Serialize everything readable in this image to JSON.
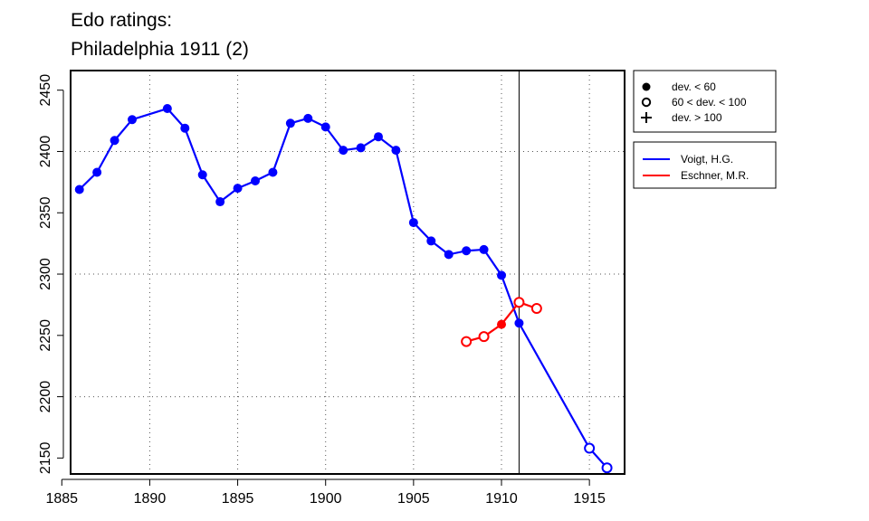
{
  "chart_data": {
    "type": "line",
    "title_lines": [
      "Edo ratings:",
      "Philadelphia 1911 (2)"
    ],
    "xlabel": "",
    "ylabel": "",
    "xlim": [
      1885.5,
      1917.0
    ],
    "ylim": [
      2137,
      2466
    ],
    "x_ticks": [
      1885,
      1890,
      1895,
      1900,
      1905,
      1910,
      1915
    ],
    "y_ticks": [
      2150,
      2200,
      2250,
      2300,
      2350,
      2400,
      2450
    ],
    "x_grid": [
      1890,
      1895,
      1900,
      1905,
      1910,
      1915
    ],
    "y_grid": [
      2200,
      2300,
      2400
    ],
    "grid": "dotted",
    "reference_line_x": 1911,
    "marker_legend": [
      {
        "symbol": "filled-circle",
        "label": "dev. < 60"
      },
      {
        "symbol": "open-circle",
        "label": "60 < dev. < 100"
      },
      {
        "symbol": "plus",
        "label": "dev. > 100"
      }
    ],
    "legend_position": "right",
    "series": [
      {
        "name": "Voigt, H.G.",
        "color": "#0000ff",
        "points": [
          {
            "x": 1886,
            "y": 2369,
            "marker": "filled"
          },
          {
            "x": 1887,
            "y": 2383,
            "marker": "filled"
          },
          {
            "x": 1888,
            "y": 2409,
            "marker": "filled"
          },
          {
            "x": 1889,
            "y": 2426,
            "marker": "filled"
          },
          {
            "x": 1891,
            "y": 2435,
            "marker": "filled"
          },
          {
            "x": 1892,
            "y": 2419,
            "marker": "filled"
          },
          {
            "x": 1893,
            "y": 2381,
            "marker": "filled"
          },
          {
            "x": 1894,
            "y": 2359,
            "marker": "filled"
          },
          {
            "x": 1895,
            "y": 2370,
            "marker": "filled"
          },
          {
            "x": 1896,
            "y": 2376,
            "marker": "filled"
          },
          {
            "x": 1897,
            "y": 2383,
            "marker": "filled"
          },
          {
            "x": 1898,
            "y": 2423,
            "marker": "filled"
          },
          {
            "x": 1899,
            "y": 2427,
            "marker": "filled"
          },
          {
            "x": 1900,
            "y": 2420,
            "marker": "filled"
          },
          {
            "x": 1901,
            "y": 2401,
            "marker": "filled"
          },
          {
            "x": 1902,
            "y": 2403,
            "marker": "filled"
          },
          {
            "x": 1903,
            "y": 2412,
            "marker": "filled"
          },
          {
            "x": 1904,
            "y": 2401,
            "marker": "filled"
          },
          {
            "x": 1905,
            "y": 2342,
            "marker": "filled"
          },
          {
            "x": 1906,
            "y": 2327,
            "marker": "filled"
          },
          {
            "x": 1907,
            "y": 2316,
            "marker": "filled"
          },
          {
            "x": 1908,
            "y": 2319,
            "marker": "filled"
          },
          {
            "x": 1909,
            "y": 2320,
            "marker": "filled"
          },
          {
            "x": 1910,
            "y": 2299,
            "marker": "filled"
          },
          {
            "x": 1911,
            "y": 2260,
            "marker": "filled"
          },
          {
            "x": 1915,
            "y": 2158,
            "marker": "open"
          },
          {
            "x": 1916,
            "y": 2142,
            "marker": "open"
          }
        ]
      },
      {
        "name": "Eschner, M.R.",
        "color": "#ff0000",
        "points": [
          {
            "x": 1908,
            "y": 2245,
            "marker": "open"
          },
          {
            "x": 1909,
            "y": 2249,
            "marker": "open"
          },
          {
            "x": 1910,
            "y": 2259,
            "marker": "filled"
          },
          {
            "x": 1911,
            "y": 2277,
            "marker": "open"
          },
          {
            "x": 1912,
            "y": 2272,
            "marker": "open"
          }
        ]
      }
    ]
  }
}
